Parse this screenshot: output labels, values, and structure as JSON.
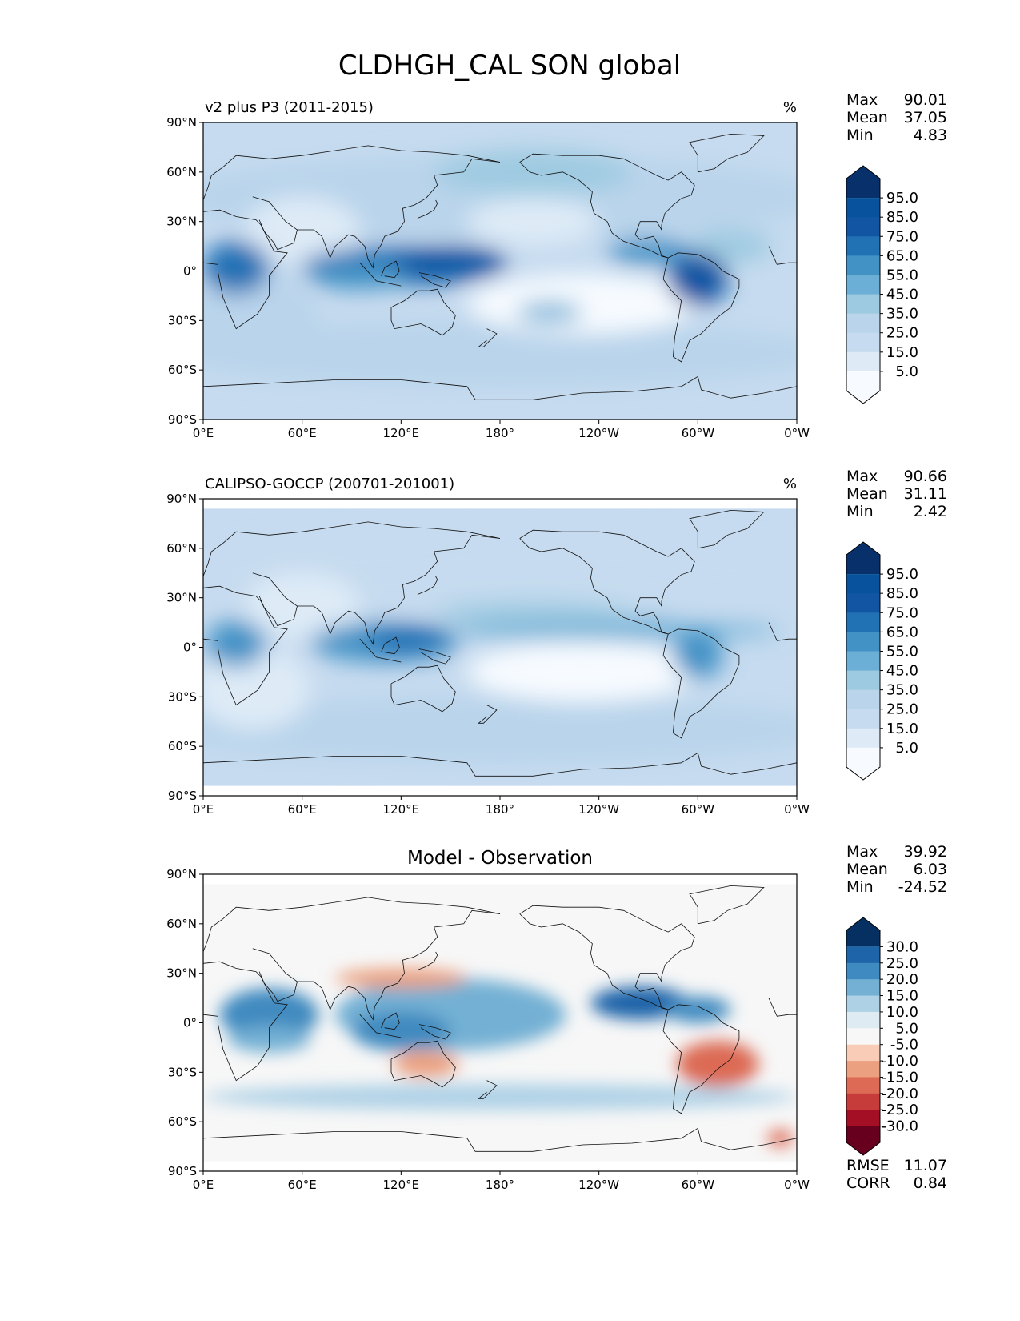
{
  "title": "CLDHGH_CAL SON global",
  "colors": {
    "blues": [
      "#f7fbff",
      "#deebf7",
      "#c6dbef",
      "#b9d4eb",
      "#9ecae1",
      "#6baed6",
      "#4292c6",
      "#2171b5",
      "#1155a3",
      "#08519c",
      "#08306b"
    ],
    "diverging": [
      "#67001f",
      "#a50f26",
      "#c63c3a",
      "#dc6a55",
      "#eba07f",
      "#f9ccb8",
      "#f7f7f7",
      "#deebf2",
      "#aed1e6",
      "#73b0d4",
      "#3f8ac0",
      "#1d64a9",
      "#053061"
    ]
  },
  "x_ticks": [
    "0°E",
    "60°E",
    "120°E",
    "180°",
    "120°W",
    "60°W",
    "0°W"
  ],
  "y_ticks": [
    "90°N",
    "60°N",
    "30°N",
    "0°",
    "30°S",
    "60°S",
    "90°S"
  ],
  "panels": [
    {
      "subtitle": "v2 plus P3 (2011-2015)",
      "units": "%",
      "stats": [
        {
          "label": "Max",
          "value": "90.01"
        },
        {
          "label": "Mean",
          "value": "37.05"
        },
        {
          "label": "Min",
          "value": "4.83"
        }
      ],
      "colorbar": {
        "labels": [
          "95.0",
          "85.0",
          "75.0",
          "65.0",
          "55.0",
          "45.0",
          "35.0",
          "25.0",
          "15.0",
          "5.0"
        ]
      }
    },
    {
      "subtitle": "CALIPSO-GOCCP (200701-201001)",
      "units": "%",
      "stats": [
        {
          "label": "Max",
          "value": "90.66"
        },
        {
          "label": "Mean",
          "value": "31.11"
        },
        {
          "label": "Min",
          "value": "2.42"
        }
      ],
      "colorbar": {
        "labels": [
          "95.0",
          "85.0",
          "75.0",
          "65.0",
          "55.0",
          "45.0",
          "35.0",
          "25.0",
          "15.0",
          "5.0"
        ]
      }
    },
    {
      "center_title": "Model - Observation",
      "stats": [
        {
          "label": "Max",
          "value": "39.92"
        },
        {
          "label": "Mean",
          "value": "6.03"
        },
        {
          "label": "Min",
          "value": "-24.52"
        }
      ],
      "colorbar": {
        "labels": [
          "30.0",
          "25.0",
          "20.0",
          "15.0",
          "10.0",
          "5.0",
          "-5.0",
          "-10.0",
          "-15.0",
          "-20.0",
          "-25.0",
          "-30.0"
        ]
      },
      "metrics": [
        {
          "label": "RMSE",
          "value": "11.07"
        },
        {
          "label": "CORR",
          "value": "0.84"
        }
      ]
    }
  ],
  "chart_data": [
    {
      "type": "heatmap",
      "title": "v2 plus P3 (2011-2015)",
      "units": "%",
      "xlim": [
        0,
        360
      ],
      "ylim": [
        -90,
        90
      ],
      "levels": [
        5,
        15,
        25,
        35,
        45,
        55,
        65,
        75,
        85,
        95
      ],
      "stats": {
        "max": 90.01,
        "mean": 37.05,
        "min": 4.83
      },
      "features": [
        {
          "lon": 20,
          "lat": 2,
          "value": 80
        },
        {
          "lon": 120,
          "lat": 3,
          "value": 85
        },
        {
          "lon": 150,
          "lat": 5,
          "value": 85
        },
        {
          "lon": 270,
          "lat": 12,
          "value": 75
        },
        {
          "lon": 300,
          "lat": -5,
          "value": 80
        },
        {
          "lon": 230,
          "lat": -12,
          "value": 15
        }
      ]
    },
    {
      "type": "heatmap",
      "title": "CALIPSO-GOCCP (200701-201001)",
      "units": "%",
      "xlim": [
        0,
        360
      ],
      "ylim": [
        -90,
        90
      ],
      "levels": [
        5,
        15,
        25,
        35,
        45,
        55,
        65,
        75,
        85,
        95
      ],
      "stats": {
        "max": 90.66,
        "mean": 31.11,
        "min": 2.42
      },
      "features": [
        {
          "lon": 20,
          "lat": 2,
          "value": 75
        },
        {
          "lon": 110,
          "lat": 3,
          "value": 85
        },
        {
          "lon": 300,
          "lat": -5,
          "value": 75
        },
        {
          "lon": 230,
          "lat": -12,
          "value": 10
        }
      ]
    },
    {
      "type": "heatmap",
      "title": "Model - Observation",
      "xlim": [
        0,
        360
      ],
      "ylim": [
        -90,
        90
      ],
      "levels": [
        -30,
        -25,
        -20,
        -15,
        -10,
        -5,
        5,
        10,
        15,
        20,
        25,
        30
      ],
      "stats": {
        "max": 39.92,
        "mean": 6.03,
        "min": -24.52
      },
      "metrics": {
        "rmse": 11.07,
        "corr": 0.84
      },
      "features": [
        {
          "lon": 40,
          "lat": 5,
          "value": 30
        },
        {
          "lon": 150,
          "lat": 15,
          "value": 30
        },
        {
          "lon": 160,
          "lat": -5,
          "value": 25
        },
        {
          "lon": 265,
          "lat": 12,
          "value": 25
        },
        {
          "lon": 312,
          "lat": -25,
          "value": -20
        }
      ]
    }
  ]
}
